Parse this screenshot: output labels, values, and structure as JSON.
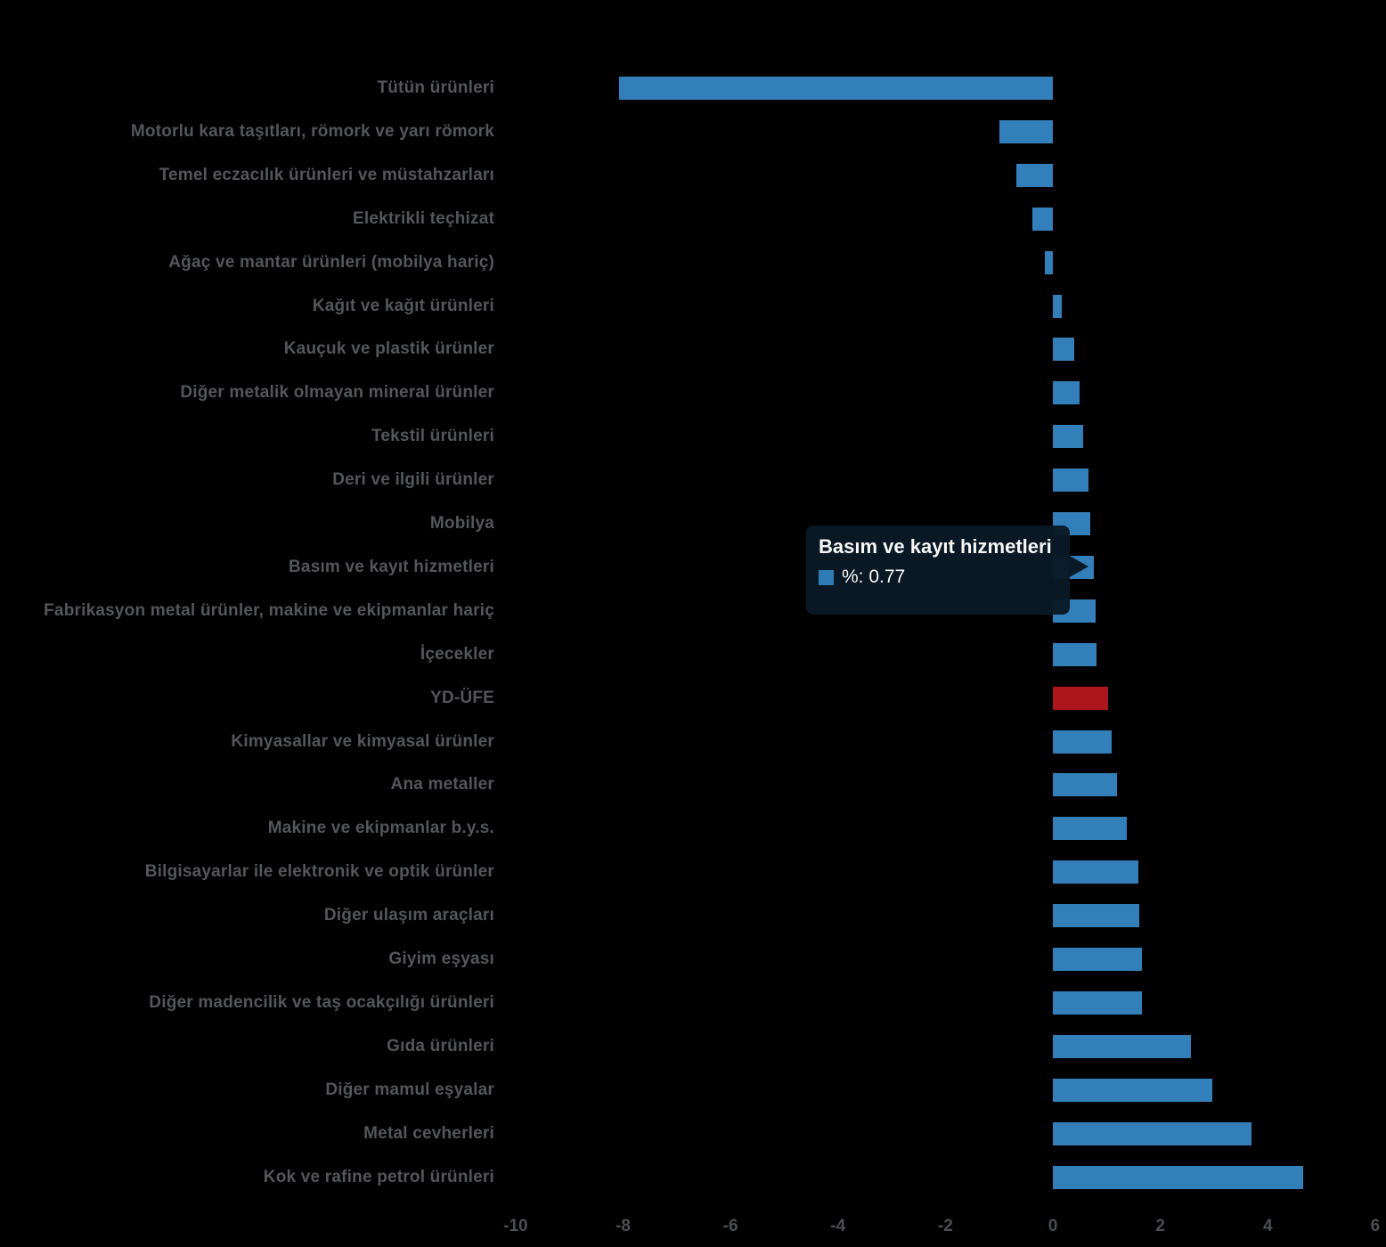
{
  "chart_data": {
    "type": "bar",
    "orientation": "horizontal",
    "title": "",
    "xlabel": "",
    "ylabel": "",
    "x_ticks": [
      -10,
      -8,
      -6,
      -4,
      -2,
      0,
      2,
      4,
      6
    ],
    "xlim": [
      -10.23,
      6.2
    ],
    "grid": false,
    "legend_position": "none",
    "bars": [
      {
        "label": "Tütün ürünleri",
        "value": -8.08
      },
      {
        "label": "Motorlu kara taşıtları, römork ve yarı römork",
        "value": -0.99
      },
      {
        "label": "Temel eczacılık ürünleri ve müstahzarları",
        "value": -0.68
      },
      {
        "label": "Elektrikli teçhizat",
        "value": -0.39
      },
      {
        "label": "Ağaç ve mantar ürünleri (mobilya hariç)",
        "value": -0.15
      },
      {
        "label": "Kağıt ve kağıt ürünleri",
        "value": 0.17
      },
      {
        "label": "Kauçuk ve plastik ürünler",
        "value": 0.39
      },
      {
        "label": "Diğer metalik olmayan mineral ürünler",
        "value": 0.5
      },
      {
        "label": "Tekstil ürünleri",
        "value": 0.57
      },
      {
        "label": "Deri ve ilgili ürünler",
        "value": 0.66
      },
      {
        "label": "Mobilya",
        "value": 0.7
      },
      {
        "label": "Basım ve kayıt hizmetleri",
        "value": 0.77,
        "hovered": true
      },
      {
        "label": "Fabrikasyon metal ürünler, makine ve ekipmanlar hariç",
        "value": 0.8
      },
      {
        "label": "İçecekler",
        "value": 0.81
      },
      {
        "label": "YD-ÜFE",
        "value": 1.02,
        "is_index": true
      },
      {
        "label": "Kimyasallar ve kimyasal ürünler",
        "value": 1.1
      },
      {
        "label": "Ana metaller",
        "value": 1.2
      },
      {
        "label": "Makine ve ekipmanlar b.y.s.",
        "value": 1.37
      },
      {
        "label": "Bilgisayarlar ile elektronik ve optik ürünler",
        "value": 1.59
      },
      {
        "label": "Diğer ulaşım araçları",
        "value": 1.61
      },
      {
        "label": "Giyim eşyası",
        "value": 1.65
      },
      {
        "label": "Diğer madencilik ve taş ocakçılığı ürünleri",
        "value": 1.66
      },
      {
        "label": "Gıda ürünleri",
        "value": 2.57
      },
      {
        "label": "Diğer mamul eşyalar",
        "value": 2.97
      },
      {
        "label": "Metal cevherleri",
        "value": 3.7
      },
      {
        "label": "Kok ve rafine petrol ürünleri",
        "value": 4.66
      }
    ],
    "tooltip": {
      "title": "Basım ve kayıt hizmetleri",
      "series_name": "%",
      "value": 0.77,
      "value_text": "%: 0.77"
    },
    "palette": {
      "bar_blue": "#327fba",
      "bar_red": "#ad161d",
      "category_label": "#54565a",
      "tick_label": "#4b4e52",
      "tooltip_bg": "#0a1926",
      "tooltip_text": "#ffffff"
    }
  }
}
